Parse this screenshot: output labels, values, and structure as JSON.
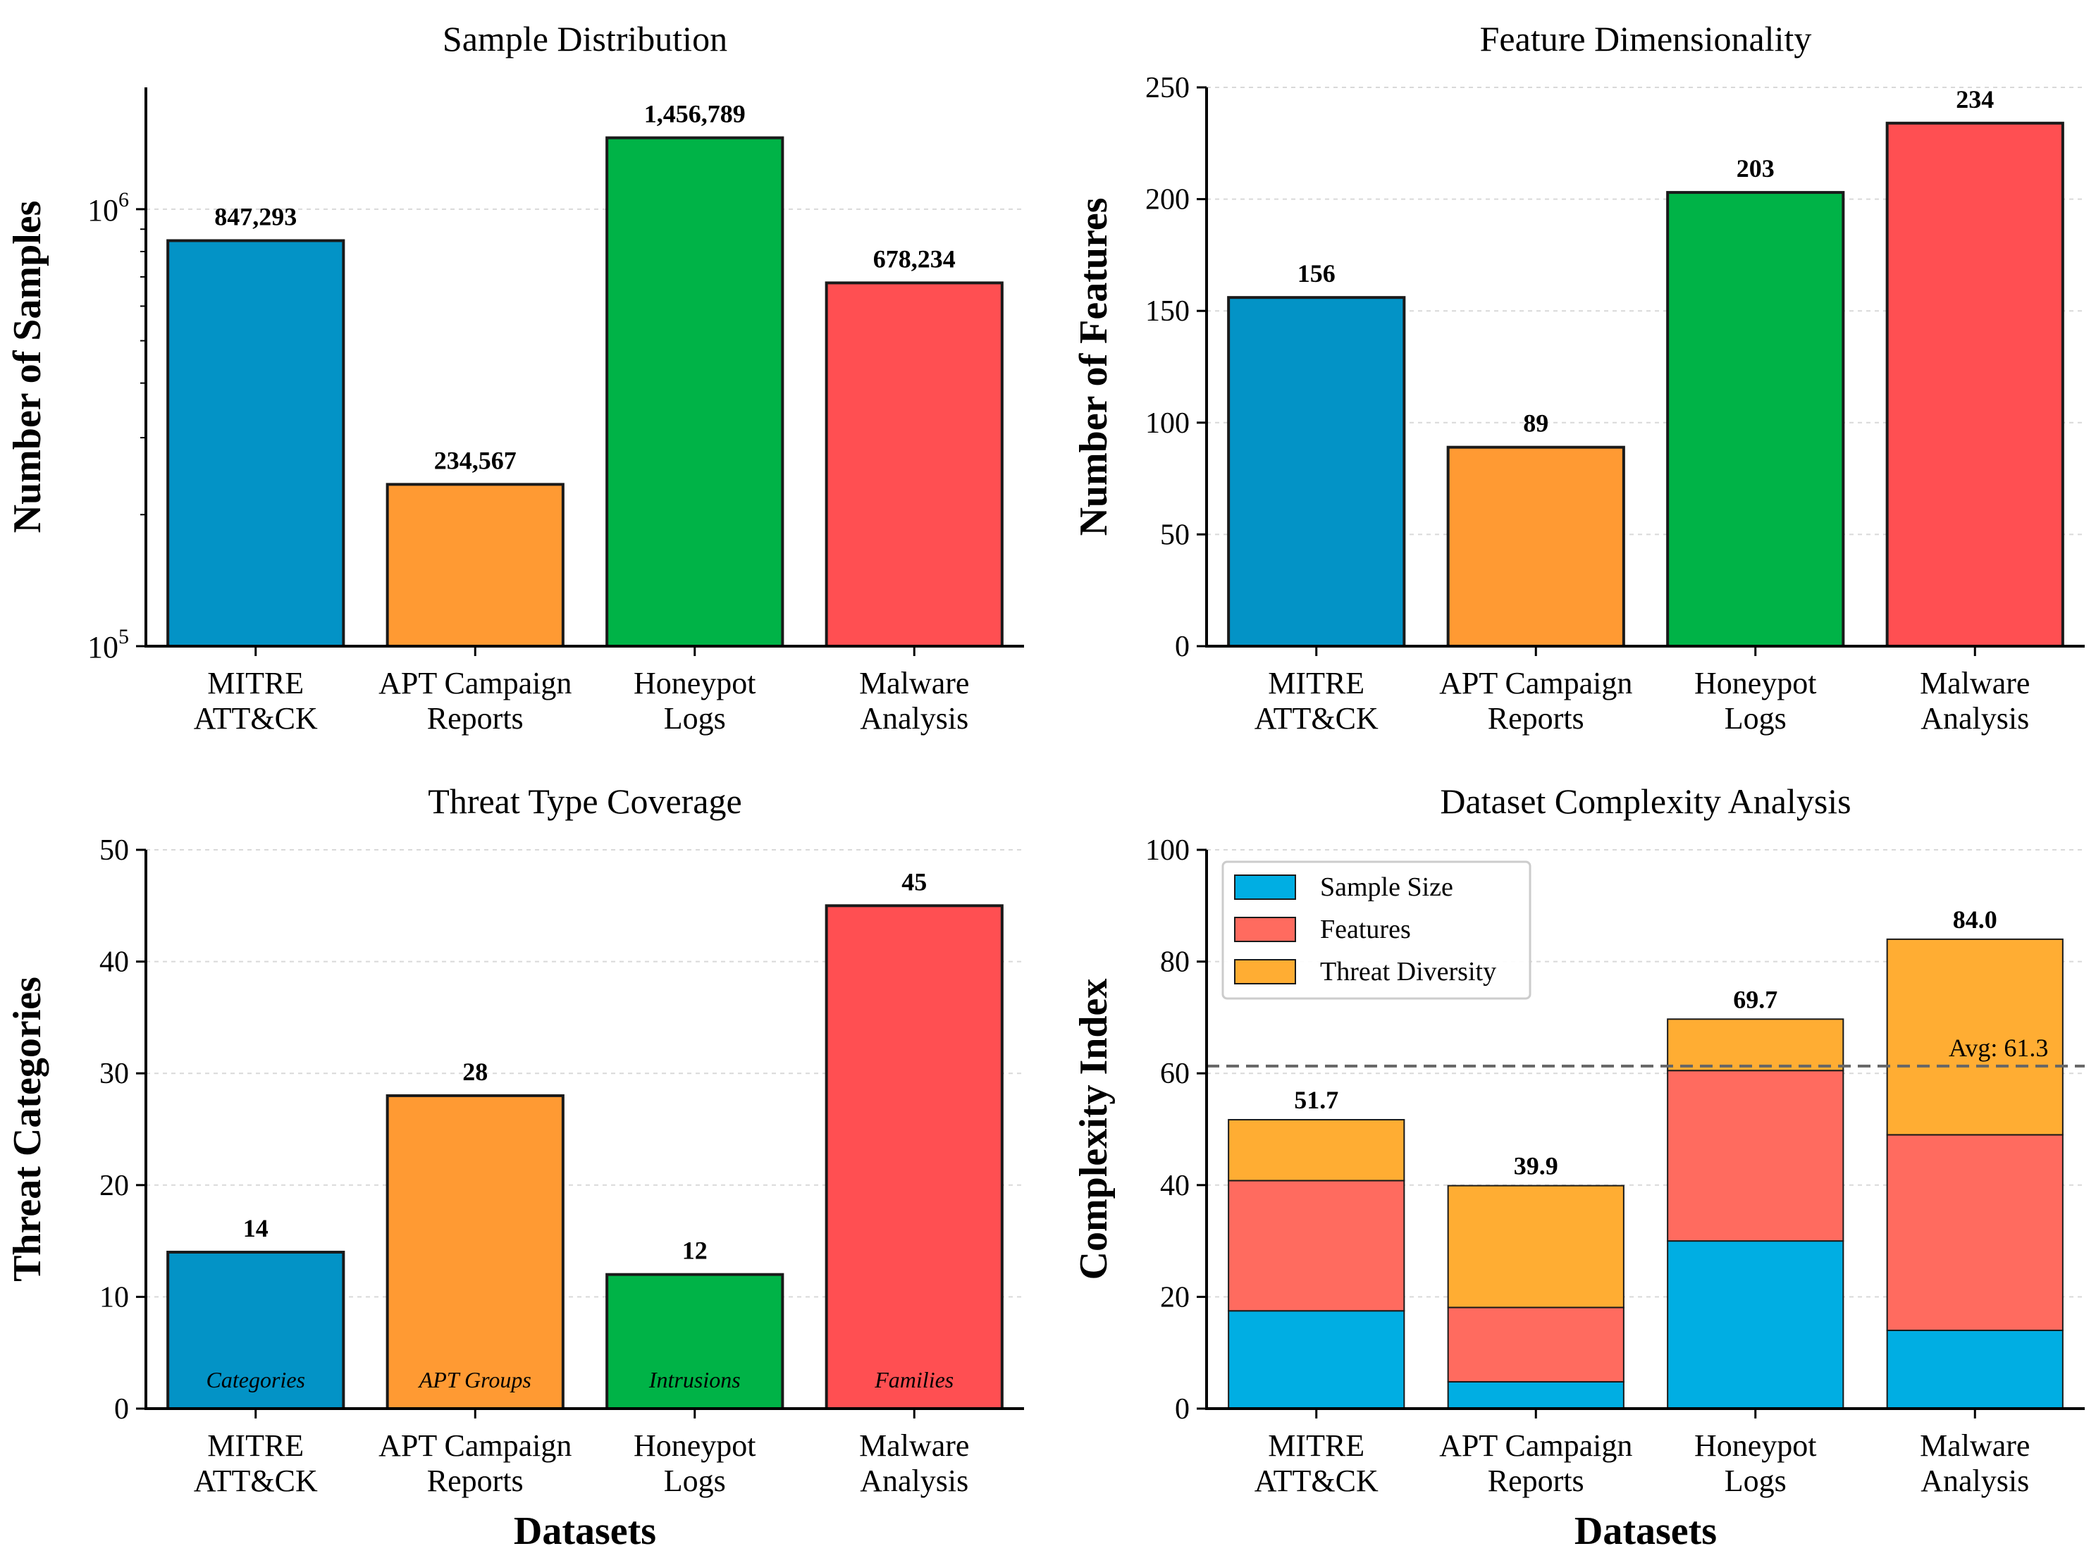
{
  "colors": {
    "mitre": "#0393c6",
    "apt": "#ff9a33",
    "honeypot": "#00b347",
    "malware": "#ff4f52",
    "sample_size": "#00aee3",
    "features": "#ff6b5f",
    "threat_diversity": "#ffad33",
    "edge": "#1a1a1a",
    "avg_line": "#666666"
  },
  "chart_data": [
    {
      "id": "samples",
      "type": "bar",
      "title": "Sample Distribution",
      "ylabel": "Number of Samples",
      "xlabel": "",
      "yscale": "log",
      "ylim": [
        100000,
        1900000
      ],
      "yticks": [
        {
          "value": 100000,
          "base": "10",
          "exp": "5"
        },
        {
          "value": 1000000,
          "base": "10",
          "exp": "6"
        }
      ],
      "categories": [
        [
          "MITRE",
          "ATT&CK"
        ],
        [
          "APT Campaign",
          "Reports"
        ],
        [
          "Honeypot",
          "Logs"
        ],
        [
          "Malware",
          "Analysis"
        ]
      ],
      "values": [
        847293,
        234567,
        1456789,
        678234
      ],
      "value_labels": [
        "847,293",
        "234,567",
        "1,456,789",
        "678,234"
      ]
    },
    {
      "id": "features",
      "type": "bar",
      "title": "Feature Dimensionality",
      "ylabel": "Number of Features",
      "xlabel": "",
      "yscale": "linear",
      "ylim": [
        0,
        250
      ],
      "yticks": [
        0,
        50,
        100,
        150,
        200,
        250
      ],
      "categories": [
        [
          "MITRE",
          "ATT&CK"
        ],
        [
          "APT Campaign",
          "Reports"
        ],
        [
          "Honeypot",
          "Logs"
        ],
        [
          "Malware",
          "Analysis"
        ]
      ],
      "values": [
        156,
        89,
        203,
        234
      ],
      "value_labels": [
        "156",
        "89",
        "203",
        "234"
      ]
    },
    {
      "id": "threats",
      "type": "bar",
      "title": "Threat Type Coverage",
      "ylabel": "Threat Categories",
      "xlabel": "Datasets",
      "yscale": "linear",
      "ylim": [
        0,
        50
      ],
      "yticks": [
        0,
        10,
        20,
        30,
        40,
        50
      ],
      "categories": [
        [
          "MITRE",
          "ATT&CK"
        ],
        [
          "APT Campaign",
          "Reports"
        ],
        [
          "Honeypot",
          "Logs"
        ],
        [
          "Malware",
          "Analysis"
        ]
      ],
      "values": [
        14,
        28,
        12,
        45
      ],
      "value_labels": [
        "14",
        "28",
        "12",
        "45"
      ],
      "inner_labels": [
        "Categories",
        "APT Groups",
        "Intrusions",
        "Families"
      ]
    },
    {
      "id": "complexity",
      "type": "bar",
      "stacked": true,
      "title": "Dataset Complexity Analysis",
      "ylabel": "Complexity Index",
      "xlabel": "Datasets",
      "yscale": "linear",
      "ylim": [
        0,
        100
      ],
      "yticks": [
        0,
        20,
        40,
        60,
        80,
        100
      ],
      "categories": [
        [
          "MITRE",
          "ATT&CK"
        ],
        [
          "APT Campaign",
          "Reports"
        ],
        [
          "Honeypot",
          "Logs"
        ],
        [
          "Malware",
          "Analysis"
        ]
      ],
      "series": [
        {
          "name": "Sample Size",
          "values": [
            17.5,
            4.8,
            30.0,
            14.0
          ]
        },
        {
          "name": "Features",
          "values": [
            23.3,
            13.3,
            30.5,
            35.0
          ]
        },
        {
          "name": "Threat Diversity",
          "values": [
            10.9,
            21.8,
            9.2,
            35.0
          ]
        }
      ],
      "totals": [
        51.7,
        39.9,
        69.7,
        84.0
      ],
      "total_labels": [
        "51.7",
        "39.9",
        "69.7",
        "84.0"
      ],
      "average": 61.3,
      "average_label": "Avg: 61.3",
      "legend_position": "upper-left"
    }
  ]
}
